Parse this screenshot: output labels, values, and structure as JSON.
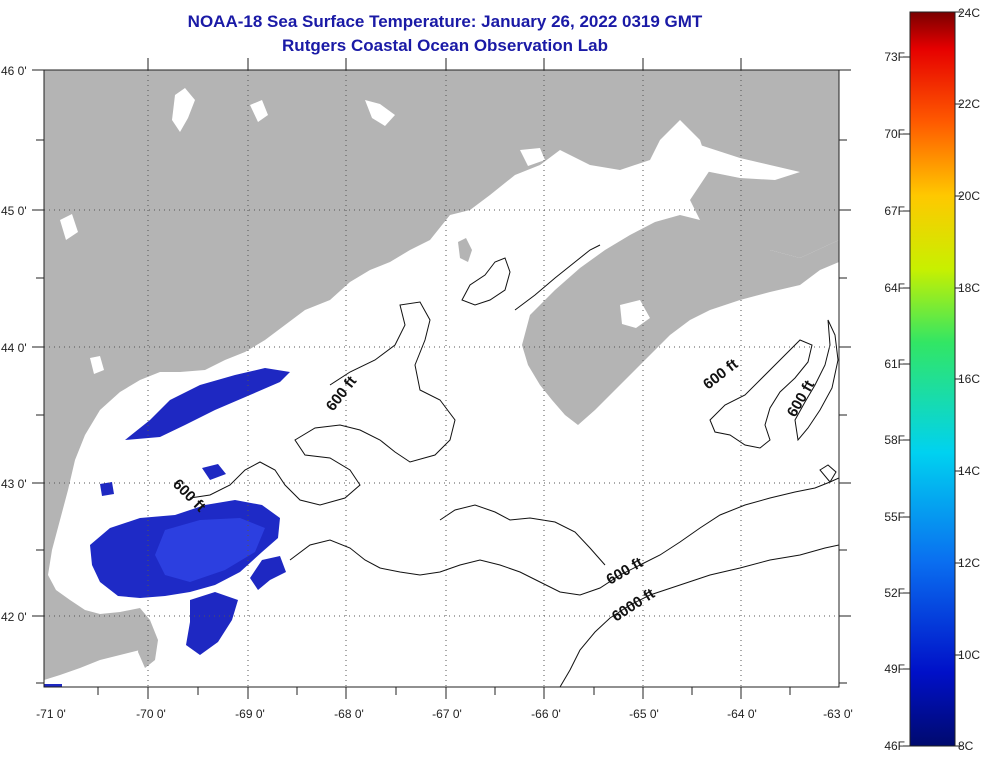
{
  "header": {
    "title": "NOAA-18 Sea Surface Temperature:  January 26, 2022 0319 GMT",
    "subtitle": "Rutgers Coastal Ocean Observation Lab"
  },
  "axes": {
    "lat_labels": [
      "46 0'",
      "45 0'",
      "44 0'",
      "43 0'",
      "42 0'"
    ],
    "lon_labels": [
      "-71 0'",
      "-70 0'",
      "-69 0'",
      "-68 0'",
      "-67 0'",
      "-66 0'",
      "-65 0'",
      "-64 0'",
      "-63 0'"
    ]
  },
  "contours": {
    "labels": [
      "600 ft",
      "600 ft",
      "600 ft",
      "600 ft",
      "600 ft",
      "6000 ft"
    ]
  },
  "colorbar": {
    "fahrenheit_labels": [
      "73F",
      "70F",
      "67F",
      "64F",
      "61F",
      "58F",
      "55F",
      "52F",
      "49F",
      "46F"
    ],
    "celsius_labels": [
      "24C",
      "22C",
      "20C",
      "18C",
      "16C",
      "14C",
      "12C",
      "10C",
      "8C"
    ]
  },
  "colors": {
    "land": "#b4b4b4",
    "ocean_no_data": "#ffffff",
    "sst_cold": "#1d27c4",
    "title": "#1a1aa6"
  }
}
